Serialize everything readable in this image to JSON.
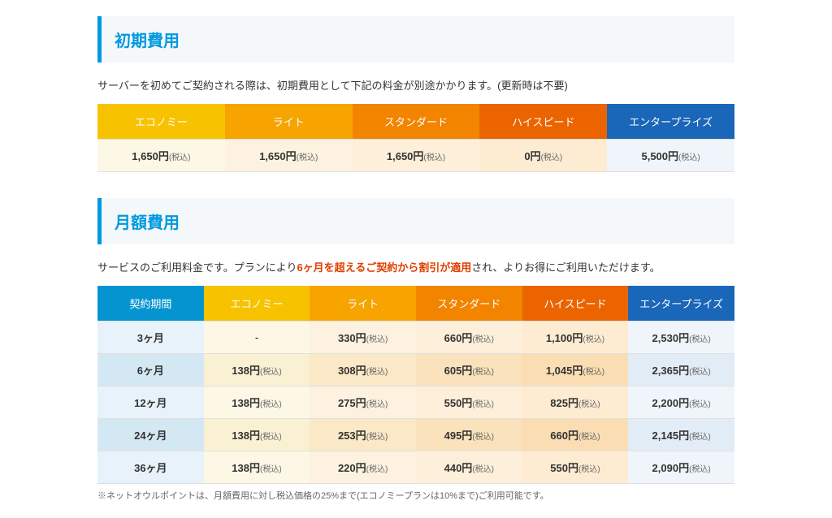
{
  "initial": {
    "heading": "初期費用",
    "description": "サーバーを初めてご契約される際は、初期費用として下記の料金が別途かかります。(更新時は不要)",
    "plans": [
      "エコノミー",
      "ライト",
      "スタンダード",
      "ハイスピード",
      "エンタープライズ"
    ],
    "prices": [
      "1,650円",
      "1,650円",
      "1,650円",
      "0円",
      "5,500円"
    ],
    "tax": "(税込)"
  },
  "monthly": {
    "heading": "月額費用",
    "desc_pre": "サービスのご利用料金です。プランにより",
    "desc_highlight": "6ヶ月を超えるご契約から割引が適用",
    "desc_post": "され、よりお得にご利用いただけます。",
    "period_header": "契約期間",
    "plans": [
      "エコノミー",
      "ライト",
      "スタンダード",
      "ハイスピード",
      "エンタープライズ"
    ],
    "rows": [
      {
        "period": "3ヶ月",
        "prices": [
          "-",
          "330円",
          "660円",
          "1,100円",
          "2,530円"
        ]
      },
      {
        "period": "6ヶ月",
        "prices": [
          "138円",
          "308円",
          "605円",
          "1,045円",
          "2,365円"
        ]
      },
      {
        "period": "12ヶ月",
        "prices": [
          "138円",
          "275円",
          "550円",
          "825円",
          "2,200円"
        ]
      },
      {
        "period": "24ヶ月",
        "prices": [
          "138円",
          "253円",
          "495円",
          "660円",
          "2,145円"
        ]
      },
      {
        "period": "36ヶ月",
        "prices": [
          "138円",
          "220円",
          "440円",
          "550円",
          "2,090円"
        ]
      }
    ],
    "tax": "(税込)",
    "footnote": "※ネットオウルポイントは、月額費用に対し税込価格の25%まで(エコノミープランは10%まで)ご利用可能です。"
  },
  "colors": {
    "heading": "#0099e0",
    "heading_bg": "#f4f8fa",
    "plan_eco": "#f7c200",
    "plan_lite": "#f7a400",
    "plan_std": "#f28400",
    "plan_hs": "#ec6400",
    "plan_ent": "#1a66b8",
    "period_hdr": "#0594d0",
    "highlight": "#e04000"
  }
}
